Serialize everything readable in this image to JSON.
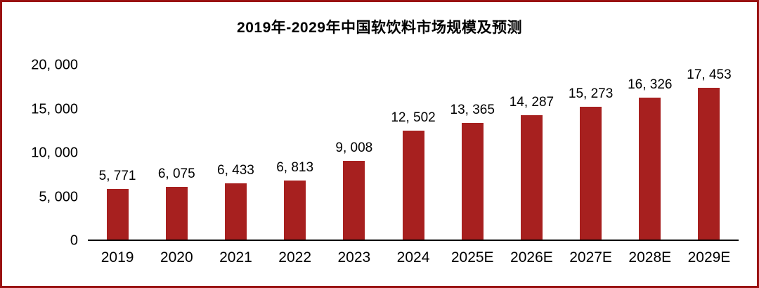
{
  "colors": {
    "bar": "#a7201f",
    "frame_border": "#9a1212",
    "axis": "#000000",
    "text": "#000000"
  },
  "chart_data": {
    "type": "bar",
    "title": "2019年-2029年中国软饮料市场规模及预测",
    "categories": [
      "2019",
      "2020",
      "2021",
      "2022",
      "2023",
      "2024",
      "2025E",
      "2026E",
      "2027E",
      "2028E",
      "2029E"
    ],
    "values": [
      5771,
      6075,
      6433,
      6813,
      9008,
      12502,
      13365,
      14287,
      15273,
      16326,
      17453
    ],
    "value_labels": [
      "5, 771",
      "6, 075",
      "6, 433",
      "6, 813",
      "9, 008",
      "12, 502",
      "13, 365",
      "14, 287",
      "15, 273",
      "16, 326",
      "17, 453"
    ],
    "xlabel": "",
    "ylabel": "",
    "ylim": [
      0,
      20000
    ],
    "yticks": [
      0,
      5000,
      10000,
      15000,
      20000
    ],
    "ytick_labels": [
      "0",
      "5, 000",
      "10, 000",
      "15, 000",
      "20, 000"
    ],
    "grid": false,
    "legend": "none",
    "series_name": "中国软饮料市场规模"
  }
}
